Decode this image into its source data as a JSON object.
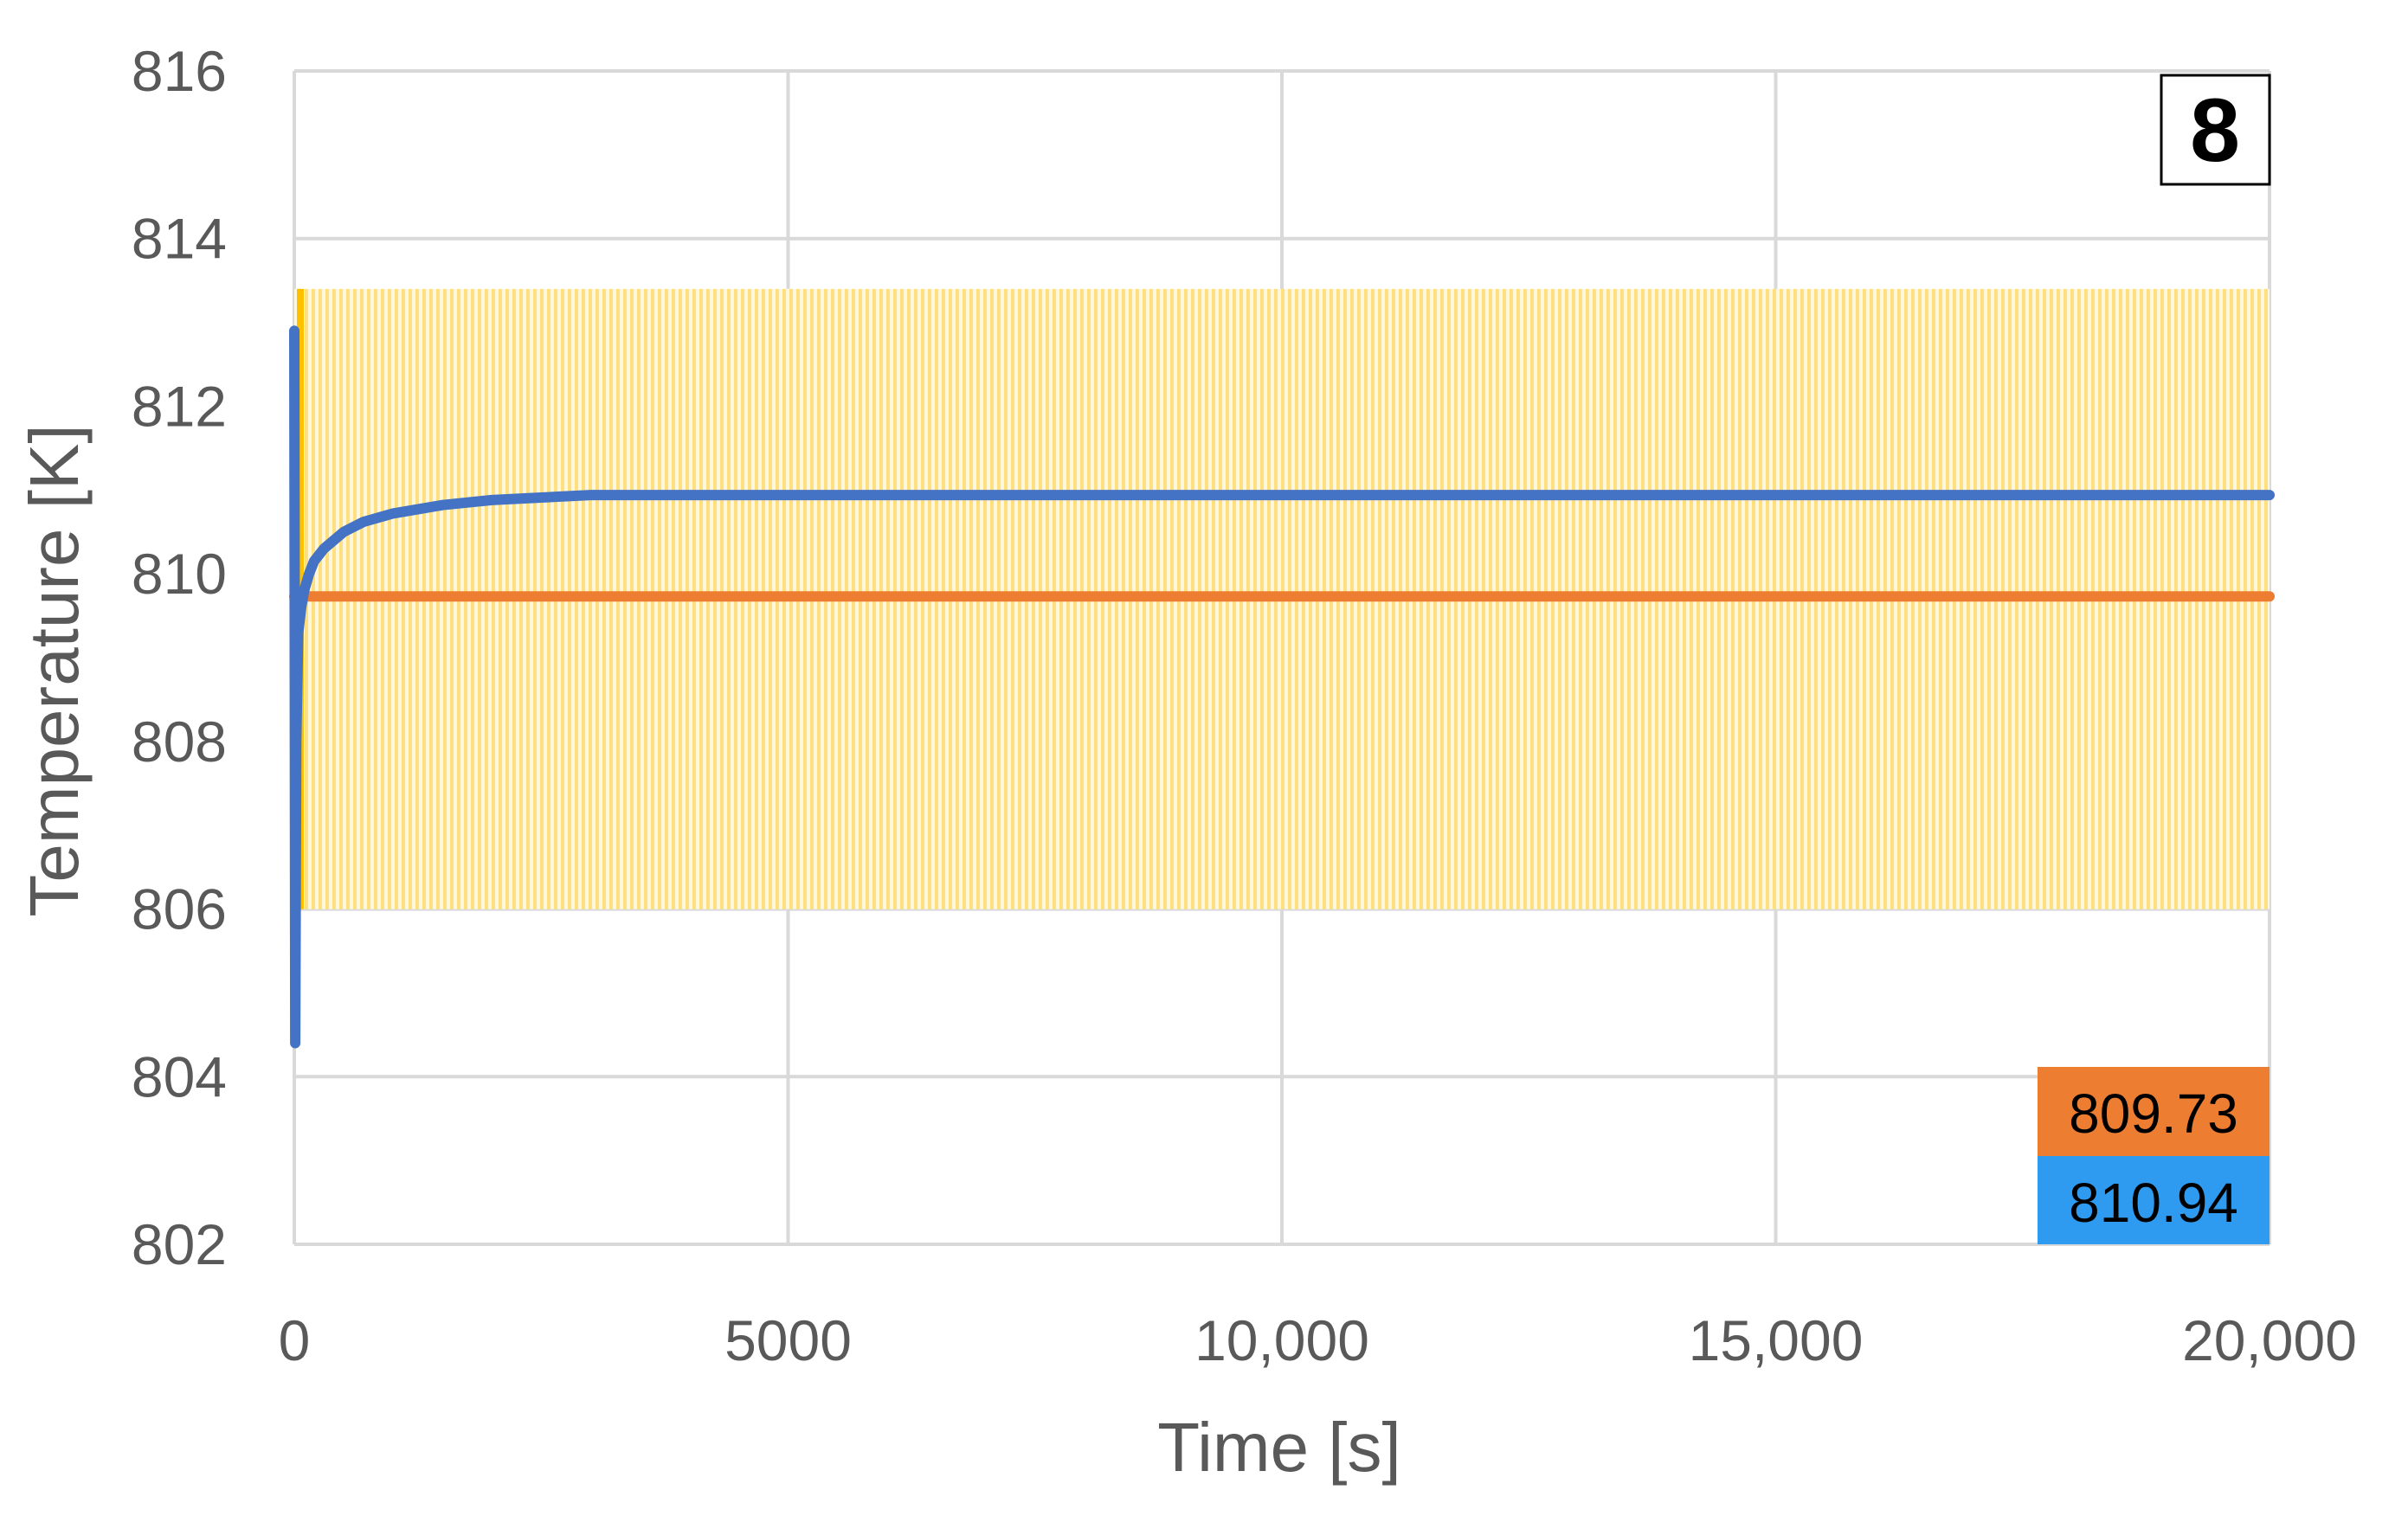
{
  "chart_data": {
    "type": "line",
    "xlabel": "Time [s]",
    "ylabel": "Temperature [K]",
    "xlim": [
      0,
      20000
    ],
    "ylim": [
      802,
      816
    ],
    "x_ticks": [
      0,
      5000,
      10000,
      15000,
      20000
    ],
    "x_tick_labels": [
      "0",
      "5000",
      "10,000",
      "15,000",
      "20,000"
    ],
    "y_ticks": [
      802,
      804,
      806,
      808,
      810,
      812,
      814,
      816
    ],
    "y_tick_labels": [
      "802",
      "804",
      "806",
      "808",
      "810",
      "812",
      "814",
      "816"
    ],
    "grid": true,
    "panel_label": "8",
    "band": {
      "color": "#FFC000",
      "x_start": 0,
      "x_end": 20000,
      "y_low": 806.0,
      "y_high": 813.4
    },
    "series": [
      {
        "color": "#4472C4",
        "x": [
          0,
          10,
          20,
          40,
          70,
          100,
          150,
          200,
          300,
          400,
          500,
          700,
          1000,
          1500,
          2000,
          2500,
          3000,
          5000,
          10000,
          15000,
          20000
        ],
        "y": [
          812.9,
          804.4,
          808.0,
          809.3,
          809.6,
          809.8,
          810.0,
          810.15,
          810.3,
          810.4,
          810.5,
          810.62,
          810.72,
          810.82,
          810.88,
          810.91,
          810.94,
          810.94,
          810.94,
          810.94,
          810.94
        ]
      },
      {
        "color": "#ED7D31",
        "x": [
          0,
          20000
        ],
        "y": [
          809.73,
          809.73
        ]
      }
    ],
    "value_boxes": [
      {
        "text": "809.73",
        "color": "#ED7D31"
      },
      {
        "text": "810.94",
        "color": "#2E9BF0"
      }
    ]
  }
}
